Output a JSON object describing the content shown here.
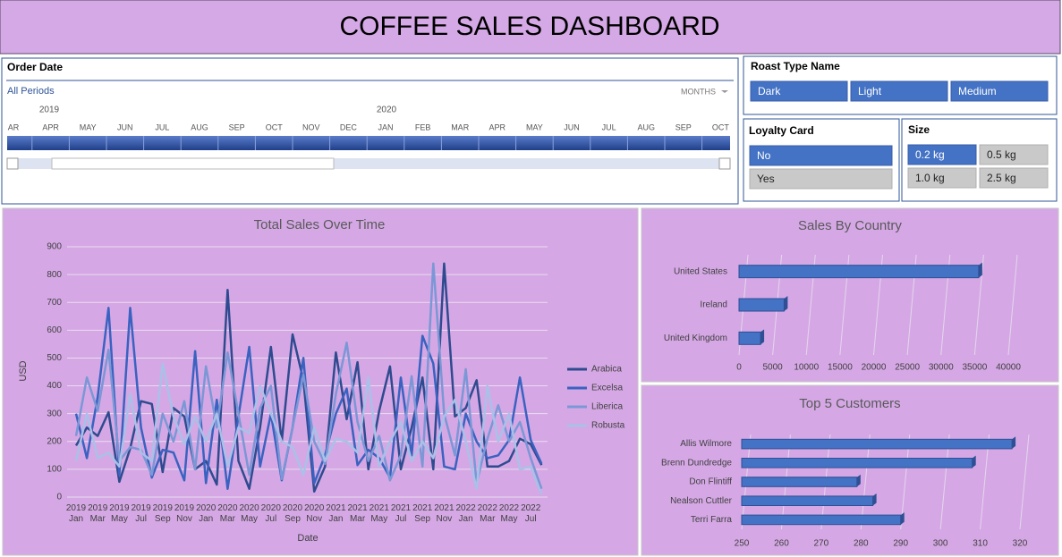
{
  "header": {
    "title": "COFFEE SALES DASHBOARD"
  },
  "slicers": {
    "order_date": {
      "title": "Order Date",
      "range": "All Periods",
      "level": "MONTHS",
      "years": [
        "2019",
        "2020"
      ],
      "months": [
        "AR",
        "APR",
        "MAY",
        "JUN",
        "JUL",
        "AUG",
        "SEP",
        "OCT",
        "NOV",
        "DEC",
        "JAN",
        "FEB",
        "MAR",
        "APR",
        "MAY",
        "JUN",
        "JUL",
        "AUG",
        "SEP",
        "OCT"
      ]
    },
    "roast_type": {
      "title": "Roast Type Name",
      "items": [
        {
          "label": "Dark",
          "selected": true
        },
        {
          "label": "Light",
          "selected": true
        },
        {
          "label": "Medium",
          "selected": true
        }
      ]
    },
    "loyalty_card": {
      "title": "Loyalty Card",
      "items": [
        {
          "label": "No",
          "selected": true
        },
        {
          "label": "Yes",
          "selected": false
        }
      ]
    },
    "size": {
      "title": "Size",
      "items": [
        {
          "label": "0.2 kg",
          "selected": true
        },
        {
          "label": "0.5 kg",
          "selected": false
        },
        {
          "label": "1.0 kg",
          "selected": false
        },
        {
          "label": "2.5 kg",
          "selected": false
        }
      ]
    }
  },
  "chart_data": [
    {
      "type": "line",
      "title": "Total Sales Over Time",
      "x_label": "Date",
      "y_label": "USD",
      "categories": [
        "2019\nJan",
        null,
        "2019\nMar",
        null,
        "2019\nMay",
        null,
        "2019\nJul",
        null,
        "2019\nSep",
        null,
        "2019\nNov",
        null,
        "2020\nJan",
        null,
        "2020\nMar",
        null,
        "2020\nMay",
        null,
        "2020\nJul",
        null,
        "2020\nSep",
        null,
        "2020\nNov",
        null,
        "2021\nJan",
        null,
        "2021\nMar",
        null,
        "2021\nMay",
        null,
        "2021\nJul",
        null,
        "2021\nSep",
        null,
        "2021\nNov",
        null,
        "2022\nJan",
        null,
        "2022\nMar",
        null,
        "2022\nMay",
        null,
        "2022\nJul",
        null
      ],
      "series": [
        {
          "name": "Arabica",
          "color": "#2f4b8f",
          "values": [
            185,
            250,
            220,
            305,
            55,
            175,
            345,
            335,
            90,
            320,
            290,
            100,
            130,
            45,
            745,
            130,
            30,
            250,
            540,
            200,
            585,
            420,
            20,
            110,
            520,
            280,
            485,
            100,
            310,
            470,
            100,
            250,
            430,
            100,
            840,
            290,
            320,
            420,
            110,
            110,
            130,
            210,
            190,
            115
          ]
        },
        {
          "name": "Excelsa",
          "color": "#3a62c0",
          "values": [
            300,
            140,
            360,
            680,
            80,
            680,
            250,
            70,
            170,
            160,
            60,
            525,
            50,
            350,
            30,
            290,
            540,
            110,
            300,
            60,
            250,
            500,
            50,
            150,
            300,
            390,
            115,
            170,
            140,
            70,
            430,
            150,
            580,
            480,
            110,
            100,
            300,
            200,
            140,
            150,
            205,
            430,
            205,
            120
          ]
        },
        {
          "name": "Liberica",
          "color": "#7b97d6",
          "values": [
            220,
            430,
            310,
            530,
            130,
            180,
            170,
            80,
            300,
            200,
            345,
            100,
            470,
            250,
            520,
            300,
            80,
            320,
            400,
            65,
            250,
            440,
            200,
            120,
            370,
            555,
            270,
            130,
            220,
            60,
            150,
            435,
            110,
            840,
            300,
            150,
            460,
            50,
            210,
            330,
            200,
            270,
            140,
            30
          ]
        },
        {
          "name": "Robusta",
          "color": "#a9c1e8",
          "values": [
            130,
            300,
            140,
            160,
            110,
            370,
            160,
            130,
            480,
            290,
            190,
            290,
            200,
            300,
            110,
            250,
            230,
            400,
            300,
            200,
            180,
            80,
            250,
            130,
            210,
            200,
            160,
            430,
            110,
            200,
            270,
            130,
            200,
            140,
            290,
            350,
            200,
            30,
            400,
            200,
            300,
            100,
            110,
            10
          ]
        }
      ],
      "ylim": [
        0,
        900
      ],
      "yticks": [
        0,
        100,
        200,
        300,
        400,
        500,
        600,
        700,
        800,
        900
      ],
      "grid": true,
      "legend": "right"
    },
    {
      "type": "hbar",
      "title": "Sales By Country",
      "categories": [
        "United States",
        "Ireland",
        "United Kingdom"
      ],
      "values": [
        35600,
        6700,
        3200
      ],
      "color": "#4472c4",
      "xlim": [
        0,
        40000
      ],
      "xticks": [
        0,
        5000,
        10000,
        15000,
        20000,
        25000,
        30000,
        35000,
        40000
      ],
      "grid": true
    },
    {
      "type": "hbar",
      "title": "Top 5 Customers",
      "categories": [
        "Allis Wilmore",
        "Brenn Dundredge",
        "Don Flintiff",
        "Nealson Cuttler",
        "Terri Farra"
      ],
      "values": [
        318,
        308,
        279,
        283,
        290
      ],
      "color": "#4472c4",
      "xlim": [
        250,
        320
      ],
      "xticks": [
        250,
        260,
        270,
        280,
        290,
        300,
        310,
        320
      ],
      "grid": true
    }
  ]
}
